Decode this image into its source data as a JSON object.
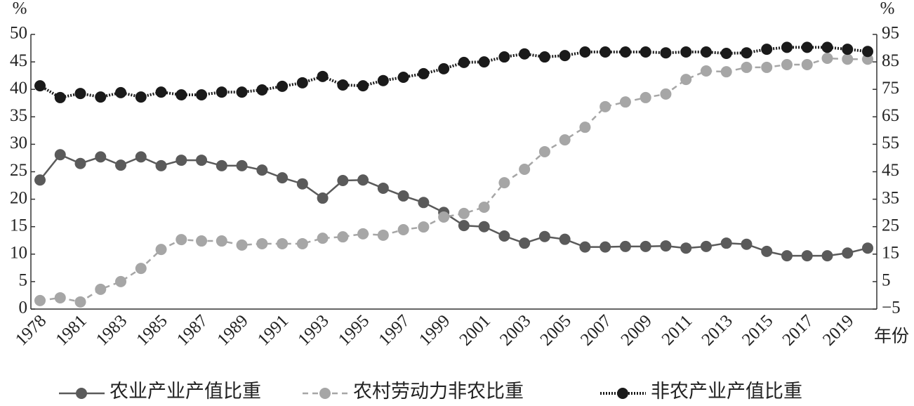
{
  "chart_data": {
    "type": "line",
    "y_label": "%",
    "y2_label": "%",
    "x_label": "年份",
    "categories": [
      "1978",
      null,
      "1981",
      null,
      "1983",
      null,
      "1985",
      null,
      "1987",
      null,
      "1989",
      null,
      "1991",
      null,
      "1993",
      null,
      "1995",
      null,
      "1997",
      null,
      "1999",
      null,
      "2001",
      null,
      "2003",
      null,
      "2005",
      null,
      "2007",
      null,
      "2009",
      null,
      "2011",
      null,
      "2013",
      null,
      "2015",
      null,
      "2017",
      null,
      "2019",
      null
    ],
    "ylim": [
      0,
      50
    ],
    "yticks": [
      0,
      5,
      10,
      15,
      20,
      25,
      30,
      35,
      40,
      45,
      50
    ],
    "y2lim": [
      -5,
      95
    ],
    "y2ticks": [
      {
        "value": -5,
        "label": "−5"
      },
      5,
      15,
      25,
      35,
      45,
      55,
      65,
      75,
      85,
      95
    ],
    "series": [
      {
        "name": "农业产业产值比重",
        "color": "#5a5a5a",
        "style": "solid",
        "values": [
          23.5,
          28.1,
          26.5,
          27.7,
          26.2,
          27.7,
          26.1,
          27.1,
          27.1,
          26.1,
          26.1,
          25.3,
          23.9,
          22.8,
          20.2,
          23.4,
          23.5,
          22.0,
          20.6,
          19.4,
          17.6,
          15.2,
          15.0,
          13.3,
          12.0,
          13.2,
          12.7,
          11.3,
          11.3,
          11.4,
          11.4,
          11.5,
          11.1,
          11.4,
          12.0,
          11.8,
          10.5,
          9.7,
          9.7,
          9.7,
          10.2,
          11.1
        ]
      },
      {
        "name": "农村劳动力非农比重",
        "color": "#a6a6a6",
        "style": "dashed",
        "axis": "y2",
        "values": [
          -1.9,
          -0.9,
          -2.4,
          2.2,
          5.0,
          9.8,
          16.7,
          20.3,
          19.8,
          19.8,
          18.3,
          18.8,
          18.8,
          18.8,
          20.8,
          21.3,
          22.4,
          21.9,
          23.9,
          24.9,
          28.5,
          29.8,
          32.1,
          41.0,
          45.9,
          52.3,
          56.6,
          61.2,
          68.7,
          70.4,
          72.0,
          73.3,
          78.6,
          81.7,
          81.4,
          83.0,
          83.0,
          84.0,
          84.0,
          86.3,
          86.0,
          86.0
        ]
      },
      {
        "name": "非农产业产值比重",
        "color": "#1a1a1a",
        "style": "dotted",
        "axis": "y2",
        "values": [
          76.3,
          72.0,
          73.5,
          72.2,
          73.8,
          72.2,
          74.0,
          73.0,
          73.0,
          74.0,
          74.0,
          74.8,
          76.1,
          77.4,
          79.7,
          76.6,
          76.3,
          78.2,
          79.4,
          80.7,
          82.5,
          84.8,
          85.0,
          86.8,
          87.9,
          86.8,
          87.3,
          88.6,
          88.6,
          88.6,
          88.6,
          88.3,
          88.6,
          88.6,
          88.1,
          88.3,
          89.6,
          90.3,
          90.3,
          90.3,
          89.6,
          88.8
        ]
      }
    ]
  }
}
